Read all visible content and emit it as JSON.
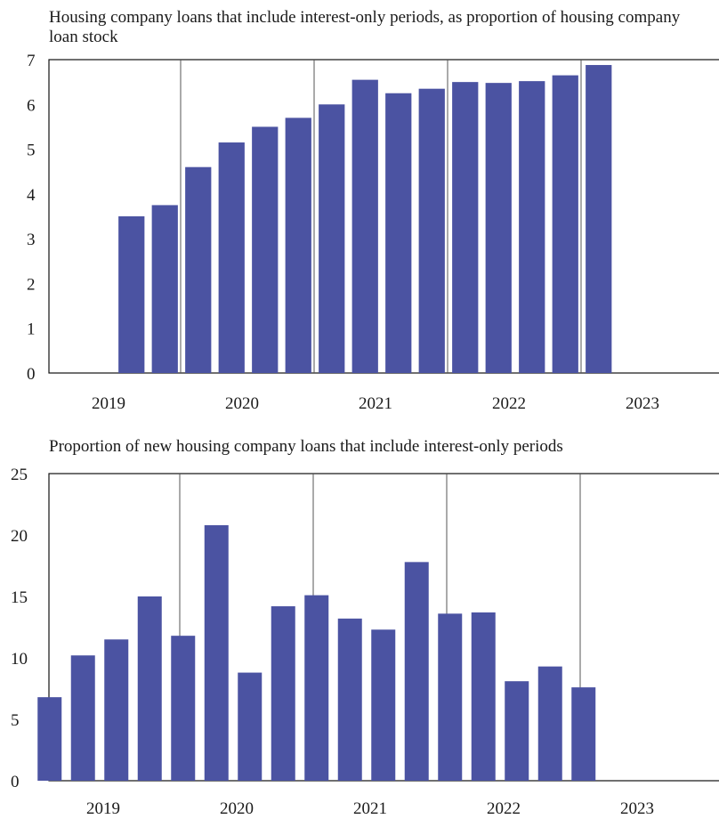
{
  "chart_data": [
    {
      "type": "bar",
      "title": "Housing company loans that include interest-only periods, as proportion of housing company loan stock",
      "xlabel": "",
      "ylabel": "",
      "ylim": [
        0,
        7
      ],
      "yticks": [
        "0",
        "1",
        "2",
        "3",
        "4",
        "5",
        "6",
        "7"
      ],
      "year_labels": [
        "2019",
        "2020",
        "2021",
        "2022",
        "2023"
      ],
      "grid": false,
      "bar_color": "#4b53a2",
      "categories": [
        "2019Q1",
        "2019Q2",
        "2019Q3",
        "2019Q4",
        "2020Q1",
        "2020Q2",
        "2020Q3",
        "2020Q4",
        "2021Q1",
        "2021Q2",
        "2021Q3",
        "2021Q4",
        "2022Q1",
        "2022Q2",
        "2022Q3",
        "2022Q4",
        "2023Q1",
        "2023Q2",
        "2023Q3",
        "2023Q4"
      ],
      "values": [
        null,
        null,
        3.5,
        3.75,
        4.6,
        5.15,
        5.5,
        5.7,
        6.0,
        6.55,
        6.25,
        6.35,
        6.5,
        6.48,
        6.52,
        6.65,
        6.88,
        null,
        null,
        null
      ]
    },
    {
      "type": "bar",
      "title": "Proportion of new housing company loans that include interest-only periods",
      "xlabel": "",
      "ylabel": "",
      "ylim": [
        0,
        25
      ],
      "yticks": [
        "0",
        "5",
        "10",
        "15",
        "20",
        "25"
      ],
      "year_labels": [
        "2019",
        "2020",
        "2021",
        "2022",
        "2023"
      ],
      "grid": false,
      "bar_color": "#4b53a2",
      "categories": [
        "2019Q1",
        "2019Q2",
        "2019Q3",
        "2019Q4",
        "2020Q1",
        "2020Q2",
        "2020Q3",
        "2020Q4",
        "2021Q1",
        "2021Q2",
        "2021Q3",
        "2021Q4",
        "2022Q1",
        "2022Q2",
        "2022Q3",
        "2022Q4",
        "2023Q1",
        "2023Q2",
        "2023Q3",
        "2023Q4"
      ],
      "values": [
        6.8,
        10.2,
        11.5,
        15.0,
        11.8,
        20.8,
        8.8,
        14.2,
        15.1,
        13.2,
        12.3,
        17.8,
        13.6,
        13.7,
        8.1,
        9.3,
        7.6,
        null,
        null,
        null
      ]
    }
  ]
}
